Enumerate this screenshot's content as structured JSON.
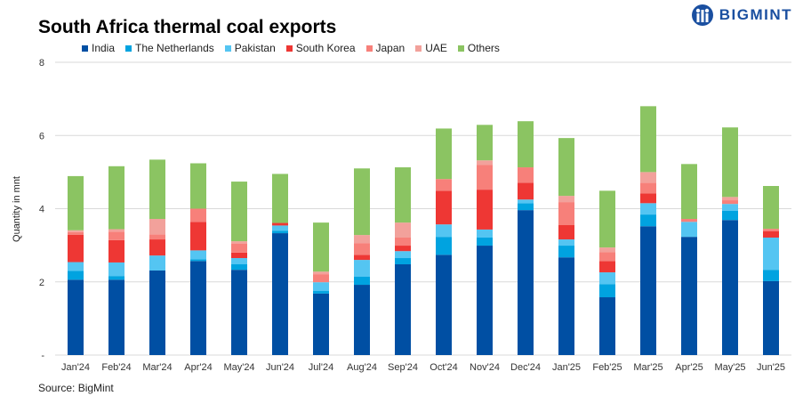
{
  "brand": "BIGMINT",
  "chart_data": {
    "type": "bar",
    "stacked": true,
    "title": "South Africa thermal coal exports",
    "ylabel": "Quantity in mnt",
    "xlabel": "",
    "ylim": [
      0,
      8
    ],
    "yticks": [
      0,
      2,
      4,
      6,
      8
    ],
    "ytick_labels": [
      "-",
      "2",
      "4",
      "6",
      "8"
    ],
    "grid": true,
    "legend_position": "top",
    "categories": [
      "Jan'24",
      "Feb'24",
      "Mar'24",
      "Apr'24",
      "May'24",
      "Jun'24",
      "Jul'24",
      "Aug'24",
      "Sep'24",
      "Oct'24",
      "Nov'24",
      "Dec'24",
      "Jan'25",
      "Feb'25",
      "Mar'25",
      "Apr'25",
      "May'25",
      "Jun'25"
    ],
    "series": [
      {
        "name": "India",
        "color": "#004FA3",
        "values": [
          2.06,
          2.06,
          2.31,
          2.57,
          2.33,
          3.33,
          1.68,
          1.92,
          2.48,
          2.74,
          2.99,
          3.96,
          2.67,
          1.58,
          3.52,
          3.23,
          3.69,
          2.02
        ]
      },
      {
        "name": "The Netherlands",
        "color": "#00A3E0",
        "values": [
          0.24,
          0.1,
          0,
          0.05,
          0.15,
          0.07,
          0.07,
          0.22,
          0.17,
          0.49,
          0.22,
          0.19,
          0.32,
          0.36,
          0.32,
          0,
          0.25,
          0.31
        ]
      },
      {
        "name": "Pakistan",
        "color": "#54C5F2",
        "values": [
          0.24,
          0.37,
          0.41,
          0.24,
          0.17,
          0.14,
          0.24,
          0.46,
          0.19,
          0.34,
          0.22,
          0.1,
          0.17,
          0.32,
          0.31,
          0.41,
          0.19,
          0.88
        ]
      },
      {
        "name": "South Korea",
        "color": "#EE3734",
        "values": [
          0.75,
          0.61,
          0.44,
          0.78,
          0.15,
          0.07,
          0,
          0.14,
          0.15,
          0.92,
          1.09,
          0.46,
          0.39,
          0.31,
          0.27,
          0,
          0,
          0.17
        ]
      },
      {
        "name": "Japan",
        "color": "#F7807A",
        "values": [
          0.07,
          0.23,
          0.14,
          0.36,
          0.24,
          0,
          0.22,
          0.32,
          0.22,
          0.32,
          0.68,
          0.42,
          0.63,
          0.24,
          0.29,
          0.08,
          0.1,
          0.07
        ]
      },
      {
        "name": "UAE",
        "color": "#F2A19B",
        "values": [
          0.05,
          0.07,
          0.42,
          0,
          0.07,
          0,
          0.07,
          0.22,
          0.41,
          0,
          0.12,
          0,
          0.17,
          0.13,
          0.29,
          0,
          0.09,
          0
        ]
      },
      {
        "name": "Others",
        "color": "#8BC462",
        "values": [
          1.48,
          1.72,
          1.62,
          1.24,
          1.63,
          1.34,
          1.34,
          1.82,
          1.51,
          1.38,
          0.97,
          1.26,
          1.58,
          1.55,
          1.8,
          1.5,
          1.9,
          1.17
        ]
      }
    ],
    "source": "Source: BigMint"
  }
}
